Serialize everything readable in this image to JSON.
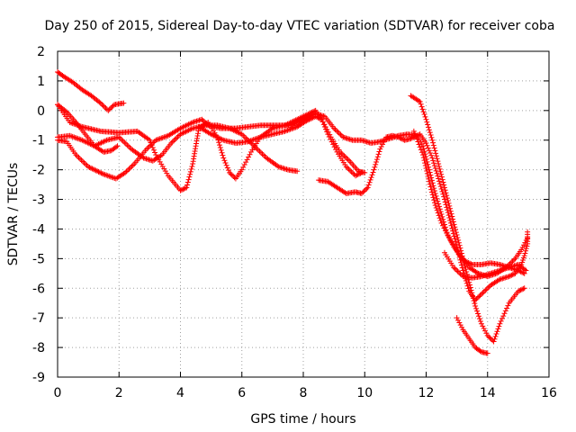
{
  "chart_data": {
    "type": "scatter",
    "title": "Day 250 of 2015, Sidereal Day-to-day VTEC variation (SDTVAR) for receiver coba",
    "xlabel": "GPS time / hours",
    "ylabel": "SDTVAR / TECUs",
    "xlim": [
      0,
      16
    ],
    "ylim": [
      -9,
      2
    ],
    "xticks": [
      0,
      2,
      4,
      6,
      8,
      10,
      12,
      14,
      16
    ],
    "yticks": [
      2,
      1,
      0,
      -1,
      -2,
      -3,
      -4,
      -5,
      -6,
      -7,
      -8,
      -9
    ],
    "grid": true,
    "marker": "+",
    "color": "#ff0000",
    "series": [
      {
        "values": [
          [
            0.0,
            1.3
          ],
          [
            0.2,
            1.15
          ],
          [
            0.5,
            0.95
          ],
          [
            0.8,
            0.7
          ],
          [
            1.1,
            0.5
          ],
          [
            1.4,
            0.25
          ],
          [
            1.65,
            0.0
          ],
          [
            1.85,
            0.2
          ],
          [
            2.15,
            0.25
          ]
        ]
      },
      {
        "values": [
          [
            0.0,
            0.2
          ],
          [
            0.3,
            -0.05
          ],
          [
            0.6,
            -0.4
          ],
          [
            0.9,
            -0.8
          ],
          [
            1.2,
            -1.2
          ],
          [
            1.5,
            -1.4
          ],
          [
            1.75,
            -1.35
          ],
          [
            1.95,
            -1.2
          ]
        ]
      },
      {
        "values": [
          [
            0.0,
            0.2
          ],
          [
            0.4,
            -0.4
          ],
          [
            0.8,
            -0.55
          ],
          [
            1.4,
            -0.7
          ],
          [
            2.0,
            -0.75
          ],
          [
            2.6,
            -0.7
          ],
          [
            3.0,
            -1.0
          ],
          [
            3.2,
            -1.5
          ],
          [
            3.6,
            -2.2
          ],
          [
            4.0,
            -2.7
          ],
          [
            4.2,
            -2.6
          ],
          [
            4.4,
            -1.8
          ],
          [
            4.6,
            -0.6
          ],
          [
            4.9,
            -0.4
          ],
          [
            5.2,
            -0.9
          ],
          [
            5.4,
            -1.6
          ],
          [
            5.6,
            -2.1
          ],
          [
            5.8,
            -2.3
          ],
          [
            6.0,
            -2.0
          ],
          [
            6.3,
            -1.4
          ],
          [
            6.6,
            -0.9
          ],
          [
            7.0,
            -0.6
          ],
          [
            7.4,
            -0.5
          ],
          [
            7.8,
            -0.3
          ],
          [
            8.2,
            -0.1
          ],
          [
            8.4,
            0.0
          ],
          [
            8.6,
            -0.3
          ],
          [
            8.9,
            -0.9
          ],
          [
            9.2,
            -1.4
          ],
          [
            9.5,
            -1.7
          ],
          [
            9.8,
            -2.05
          ],
          [
            10.0,
            -2.1
          ]
        ]
      },
      {
        "values": [
          [
            0.0,
            -1.0
          ],
          [
            0.3,
            -1.05
          ],
          [
            0.6,
            -1.5
          ],
          [
            1.0,
            -1.9
          ],
          [
            1.5,
            -2.15
          ],
          [
            1.9,
            -2.3
          ],
          [
            2.2,
            -2.1
          ],
          [
            2.5,
            -1.8
          ],
          [
            2.9,
            -1.3
          ],
          [
            3.2,
            -1.0
          ],
          [
            3.6,
            -0.85
          ],
          [
            4.0,
            -0.6
          ],
          [
            4.4,
            -0.4
          ],
          [
            4.7,
            -0.3
          ],
          [
            4.9,
            -0.5
          ],
          [
            5.3,
            -0.6
          ],
          [
            5.8,
            -0.6
          ],
          [
            6.2,
            -0.55
          ],
          [
            6.6,
            -0.5
          ],
          [
            7.1,
            -0.5
          ],
          [
            7.6,
            -0.5
          ],
          [
            8.0,
            -0.3
          ],
          [
            8.4,
            -0.1
          ],
          [
            8.7,
            -0.2
          ],
          [
            9.0,
            -0.6
          ],
          [
            9.3,
            -0.9
          ],
          [
            9.6,
            -1.0
          ],
          [
            9.9,
            -1.0
          ],
          [
            10.2,
            -1.1
          ],
          [
            10.5,
            -1.05
          ],
          [
            10.8,
            -0.95
          ],
          [
            11.1,
            -0.85
          ],
          [
            11.4,
            -0.8
          ],
          [
            11.7,
            -0.85
          ],
          [
            11.9,
            -1.2
          ],
          [
            12.1,
            -2.0
          ],
          [
            12.3,
            -2.8
          ],
          [
            12.5,
            -3.5
          ],
          [
            12.7,
            -4.2
          ],
          [
            12.9,
            -4.6
          ],
          [
            13.1,
            -4.9
          ],
          [
            13.3,
            -5.1
          ],
          [
            13.5,
            -5.2
          ],
          [
            13.8,
            -5.2
          ],
          [
            14.1,
            -5.15
          ],
          [
            14.4,
            -5.2
          ],
          [
            14.7,
            -5.3
          ],
          [
            15.0,
            -5.4
          ],
          [
            15.2,
            -5.5
          ]
        ]
      },
      {
        "values": [
          [
            0.0,
            -0.9
          ],
          [
            0.4,
            -0.85
          ],
          [
            0.8,
            -1.0
          ],
          [
            1.2,
            -1.2
          ],
          [
            1.6,
            -1.0
          ],
          [
            2.0,
            -0.9
          ],
          [
            2.4,
            -1.3
          ],
          [
            2.8,
            -1.6
          ],
          [
            3.1,
            -1.7
          ],
          [
            3.4,
            -1.5
          ],
          [
            3.7,
            -1.1
          ],
          [
            4.0,
            -0.8
          ],
          [
            4.4,
            -0.6
          ],
          [
            4.8,
            -0.5
          ],
          [
            5.2,
            -0.5
          ],
          [
            5.6,
            -0.6
          ],
          [
            6.0,
            -0.8
          ],
          [
            6.4,
            -1.2
          ],
          [
            6.8,
            -1.6
          ],
          [
            7.2,
            -1.9
          ],
          [
            7.5,
            -2.0
          ],
          [
            7.8,
            -2.05
          ]
        ]
      },
      {
        "values": [
          [
            4.6,
            -0.55
          ],
          [
            5.0,
            -0.8
          ],
          [
            5.4,
            -1.0
          ],
          [
            5.8,
            -1.1
          ],
          [
            6.2,
            -1.05
          ],
          [
            6.6,
            -0.9
          ],
          [
            7.0,
            -0.8
          ],
          [
            7.4,
            -0.7
          ],
          [
            7.8,
            -0.55
          ],
          [
            8.1,
            -0.35
          ],
          [
            8.4,
            -0.2
          ],
          [
            8.6,
            -0.3
          ],
          [
            8.8,
            -0.8
          ],
          [
            9.1,
            -1.4
          ],
          [
            9.4,
            -1.9
          ],
          [
            9.7,
            -2.2
          ],
          [
            9.9,
            -2.1
          ]
        ]
      },
      {
        "values": [
          [
            8.5,
            -2.35
          ],
          [
            8.8,
            -2.4
          ],
          [
            9.1,
            -2.6
          ],
          [
            9.4,
            -2.8
          ],
          [
            9.7,
            -2.75
          ],
          [
            9.9,
            -2.8
          ],
          [
            10.1,
            -2.6
          ],
          [
            10.3,
            -2.0
          ],
          [
            10.5,
            -1.3
          ],
          [
            10.7,
            -0.9
          ],
          [
            10.9,
            -0.85
          ],
          [
            11.1,
            -0.9
          ],
          [
            11.3,
            -1.0
          ],
          [
            11.5,
            -0.95
          ],
          [
            11.8,
            -0.8
          ],
          [
            12.0,
            -1.1
          ],
          [
            12.2,
            -1.6
          ],
          [
            12.4,
            -2.3
          ],
          [
            12.6,
            -3.0
          ],
          [
            12.8,
            -3.8
          ],
          [
            13.0,
            -4.6
          ],
          [
            13.2,
            -5.4
          ],
          [
            13.4,
            -6.1
          ],
          [
            13.6,
            -6.4
          ],
          [
            13.8,
            -6.2
          ],
          [
            14.1,
            -5.9
          ],
          [
            14.4,
            -5.7
          ],
          [
            14.7,
            -5.6
          ],
          [
            14.9,
            -5.5
          ],
          [
            15.1,
            -5.2
          ],
          [
            15.2,
            -4.9
          ],
          [
            15.3,
            -4.5
          ],
          [
            15.3,
            -4.1
          ]
        ]
      },
      {
        "values": [
          [
            11.5,
            0.5
          ],
          [
            11.8,
            0.3
          ],
          [
            12.0,
            -0.3
          ],
          [
            12.2,
            -1.0
          ],
          [
            12.4,
            -1.8
          ],
          [
            12.6,
            -2.6
          ],
          [
            12.8,
            -3.4
          ],
          [
            13.0,
            -4.2
          ],
          [
            13.2,
            -5.0
          ],
          [
            13.4,
            -5.8
          ],
          [
            13.6,
            -6.6
          ],
          [
            13.8,
            -7.2
          ],
          [
            14.0,
            -7.6
          ],
          [
            14.2,
            -7.8
          ],
          [
            14.4,
            -7.2
          ],
          [
            14.7,
            -6.5
          ],
          [
            15.0,
            -6.1
          ],
          [
            15.2,
            -6.0
          ]
        ]
      },
      {
        "values": [
          [
            13.0,
            -7.0
          ],
          [
            13.2,
            -7.4
          ],
          [
            13.4,
            -7.7
          ],
          [
            13.6,
            -8.0
          ],
          [
            13.8,
            -8.15
          ],
          [
            14.0,
            -8.2
          ]
        ]
      },
      {
        "values": [
          [
            12.6,
            -4.8
          ],
          [
            12.9,
            -5.3
          ],
          [
            13.2,
            -5.6
          ],
          [
            13.5,
            -5.65
          ],
          [
            13.8,
            -5.6
          ],
          [
            14.1,
            -5.5
          ],
          [
            14.4,
            -5.4
          ],
          [
            14.7,
            -5.3
          ],
          [
            15.0,
            -5.2
          ],
          [
            15.25,
            -5.4
          ]
        ]
      },
      {
        "values": [
          [
            11.6,
            -0.7
          ],
          [
            11.9,
            -1.5
          ],
          [
            12.1,
            -2.4
          ],
          [
            12.3,
            -3.2
          ],
          [
            12.5,
            -3.8
          ],
          [
            12.8,
            -4.4
          ],
          [
            13.1,
            -4.9
          ],
          [
            13.4,
            -5.3
          ],
          [
            13.7,
            -5.5
          ],
          [
            14.0,
            -5.6
          ],
          [
            14.3,
            -5.5
          ],
          [
            14.6,
            -5.3
          ],
          [
            14.9,
            -5.0
          ],
          [
            15.1,
            -4.7
          ],
          [
            15.3,
            -4.3
          ]
        ]
      }
    ]
  }
}
